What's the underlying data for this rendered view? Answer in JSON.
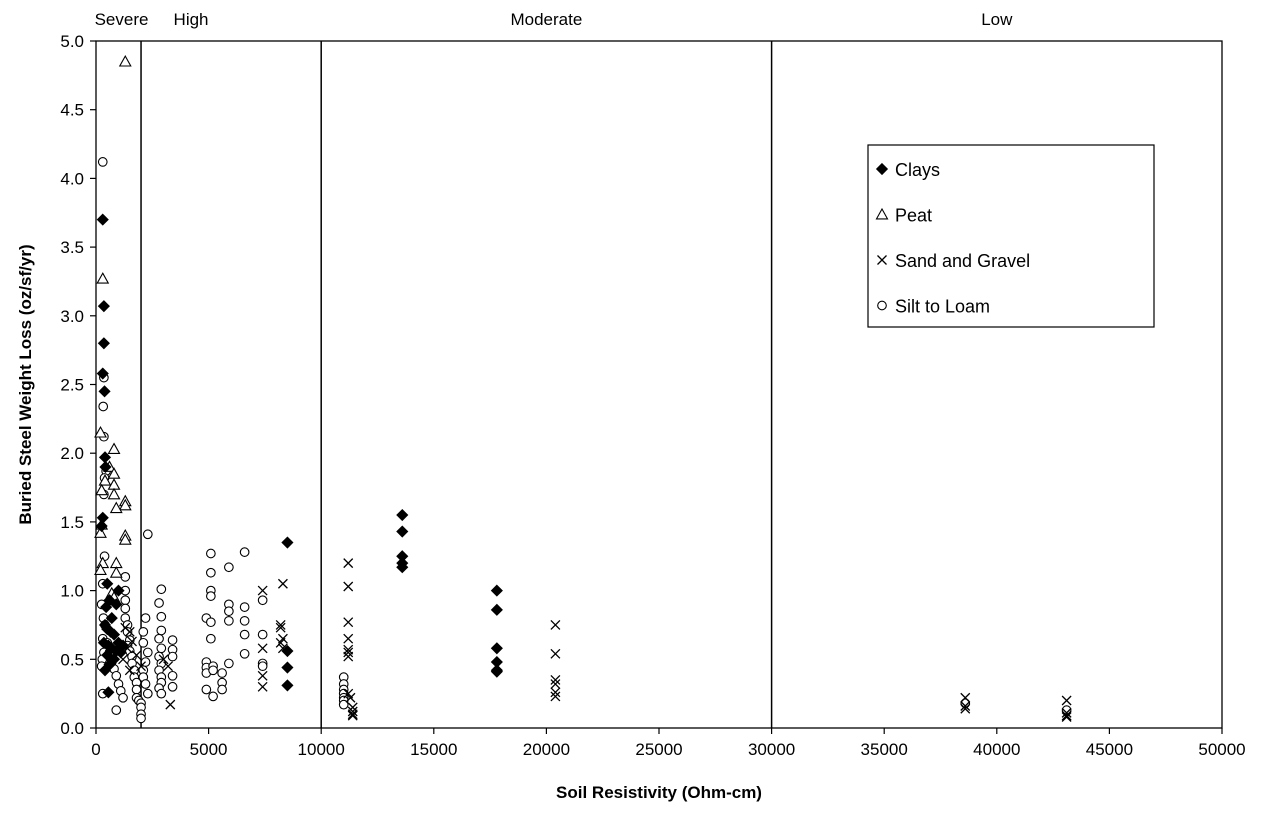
{
  "chart_data": {
    "type": "scatter",
    "title": "",
    "xlabel": "Soil Resistivity (Ohm-cm)",
    "ylabel": "Buried Steel Weight Loss (oz/sf/yr)",
    "xlim": [
      0,
      50000
    ],
    "ylim": [
      0,
      5.0
    ],
    "x_ticks": [
      "0",
      "5000",
      "10000",
      "15000",
      "20000",
      "25000",
      "30000",
      "35000",
      "40000",
      "45000",
      "50000"
    ],
    "y_ticks": [
      "0.0",
      "0.5",
      "1.0",
      "1.5",
      "2.0",
      "2.5",
      "3.0",
      "3.5",
      "4.0",
      "4.5",
      "5.0"
    ],
    "grid": false,
    "legend_position": "top-right",
    "corrosivity_zones": [
      {
        "label": "Severe",
        "from": 0,
        "to": 2000
      },
      {
        "label": "High",
        "from": 2000,
        "to": 10000
      },
      {
        "label": "Moderate",
        "from": 10000,
        "to": 30000
      },
      {
        "label": "Low",
        "from": 30000,
        "to": 50000
      }
    ],
    "series": [
      {
        "name": "Clays",
        "marker": "filled-diamond",
        "points": [
          [
            300,
            3.7
          ],
          [
            350,
            3.07
          ],
          [
            350,
            2.8
          ],
          [
            300,
            2.58
          ],
          [
            380,
            2.45
          ],
          [
            400,
            1.97
          ],
          [
            420,
            1.9
          ],
          [
            300,
            1.53
          ],
          [
            250,
            1.47
          ],
          [
            500,
            1.05
          ],
          [
            600,
            0.93
          ],
          [
            450,
            0.88
          ],
          [
            700,
            0.8
          ],
          [
            900,
            0.9
          ],
          [
            1000,
            1.0
          ],
          [
            400,
            0.75
          ],
          [
            500,
            0.72
          ],
          [
            650,
            0.7
          ],
          [
            800,
            0.68
          ],
          [
            350,
            0.62
          ],
          [
            550,
            0.6
          ],
          [
            700,
            0.58
          ],
          [
            900,
            0.56
          ],
          [
            1100,
            0.55
          ],
          [
            500,
            0.53
          ],
          [
            800,
            0.5
          ],
          [
            600,
            0.46
          ],
          [
            400,
            0.42
          ],
          [
            550,
            0.26
          ],
          [
            1200,
            0.6
          ],
          [
            1000,
            0.62
          ],
          [
            8500,
            1.35
          ],
          [
            8500,
            0.56
          ],
          [
            8500,
            0.44
          ],
          [
            8500,
            0.31
          ],
          [
            13600,
            1.55
          ],
          [
            13600,
            1.43
          ],
          [
            13600,
            1.25
          ],
          [
            13600,
            1.2
          ],
          [
            13600,
            1.17
          ],
          [
            17800,
            1.0
          ],
          [
            17800,
            0.86
          ],
          [
            17800,
            0.58
          ],
          [
            17800,
            0.48
          ],
          [
            17800,
            0.42
          ],
          [
            17800,
            0.41
          ]
        ]
      },
      {
        "name": "Peat",
        "marker": "open-triangle",
        "points": [
          [
            1300,
            4.85
          ],
          [
            300,
            3.27
          ],
          [
            200,
            2.15
          ],
          [
            800,
            2.03
          ],
          [
            600,
            1.9
          ],
          [
            800,
            1.85
          ],
          [
            400,
            1.8
          ],
          [
            800,
            1.77
          ],
          [
            250,
            1.73
          ],
          [
            800,
            1.7
          ],
          [
            1300,
            1.65
          ],
          [
            1300,
            1.62
          ],
          [
            900,
            1.6
          ],
          [
            250,
            1.48
          ],
          [
            200,
            1.42
          ],
          [
            1300,
            1.4
          ],
          [
            1300,
            1.37
          ],
          [
            300,
            1.2
          ],
          [
            900,
            1.2
          ],
          [
            200,
            1.15
          ],
          [
            900,
            1.13
          ],
          [
            700,
            0.98
          ],
          [
            800,
            0.95
          ]
        ]
      },
      {
        "name": "Sand and Gravel",
        "marker": "x-cross",
        "points": [
          [
            1300,
            0.73
          ],
          [
            1500,
            0.7
          ],
          [
            1600,
            0.63
          ],
          [
            1400,
            0.58
          ],
          [
            1800,
            0.53
          ],
          [
            1200,
            0.5
          ],
          [
            2000,
            0.45
          ],
          [
            1500,
            0.42
          ],
          [
            3000,
            0.5
          ],
          [
            3200,
            0.45
          ],
          [
            3300,
            0.17
          ],
          [
            7400,
            1.0
          ],
          [
            7400,
            0.58
          ],
          [
            7400,
            0.38
          ],
          [
            7400,
            0.3
          ],
          [
            8300,
            1.05
          ],
          [
            8200,
            0.75
          ],
          [
            8200,
            0.73
          ],
          [
            8300,
            0.65
          ],
          [
            8200,
            0.62
          ],
          [
            8300,
            0.58
          ],
          [
            11200,
            1.2
          ],
          [
            11200,
            1.03
          ],
          [
            11200,
            0.77
          ],
          [
            11200,
            0.65
          ],
          [
            11200,
            0.57
          ],
          [
            11200,
            0.55
          ],
          [
            11200,
            0.52
          ],
          [
            11200,
            0.25
          ],
          [
            11300,
            0.22
          ],
          [
            11400,
            0.15
          ],
          [
            11400,
            0.12
          ],
          [
            11400,
            0.1
          ],
          [
            11400,
            0.09
          ],
          [
            20400,
            0.75
          ],
          [
            20400,
            0.54
          ],
          [
            20400,
            0.35
          ],
          [
            20400,
            0.32
          ],
          [
            20400,
            0.26
          ],
          [
            20400,
            0.23
          ],
          [
            38600,
            0.22
          ],
          [
            38600,
            0.16
          ],
          [
            38600,
            0.14
          ],
          [
            43100,
            0.2
          ],
          [
            43100,
            0.11
          ],
          [
            43100,
            0.09
          ],
          [
            43100,
            0.08
          ]
        ]
      },
      {
        "name": "Silt to Loam",
        "marker": "open-circle",
        "points": [
          [
            300,
            4.12
          ],
          [
            350,
            2.55
          ],
          [
            320,
            2.34
          ],
          [
            350,
            2.12
          ],
          [
            450,
            1.87
          ],
          [
            380,
            1.82
          ],
          [
            350,
            1.7
          ],
          [
            380,
            1.25
          ],
          [
            300,
            1.05
          ],
          [
            250,
            0.9
          ],
          [
            330,
            0.8
          ],
          [
            400,
            0.75
          ],
          [
            300,
            0.65
          ],
          [
            350,
            0.55
          ],
          [
            280,
            0.5
          ],
          [
            250,
            0.45
          ],
          [
            300,
            0.25
          ],
          [
            500,
            0.62
          ],
          [
            600,
            0.55
          ],
          [
            700,
            0.48
          ],
          [
            800,
            0.43
          ],
          [
            900,
            0.38
          ],
          [
            1000,
            0.32
          ],
          [
            1100,
            0.27
          ],
          [
            1200,
            0.22
          ],
          [
            1300,
            1.1
          ],
          [
            1300,
            1.0
          ],
          [
            1300,
            0.93
          ],
          [
            1300,
            0.87
          ],
          [
            1300,
            0.8
          ],
          [
            1400,
            0.75
          ],
          [
            1400,
            0.7
          ],
          [
            1500,
            0.64
          ],
          [
            1400,
            0.6
          ],
          [
            1500,
            0.56
          ],
          [
            1600,
            0.52
          ],
          [
            1600,
            0.47
          ],
          [
            1700,
            0.42
          ],
          [
            1700,
            0.37
          ],
          [
            1800,
            0.33
          ],
          [
            1800,
            0.28
          ],
          [
            1800,
            0.22
          ],
          [
            1900,
            0.2
          ],
          [
            2000,
            0.18
          ],
          [
            2000,
            0.15
          ],
          [
            2000,
            0.1
          ],
          [
            2000,
            0.07
          ],
          [
            900,
            0.13
          ],
          [
            2200,
            0.8
          ],
          [
            2100,
            0.7
          ],
          [
            2100,
            0.62
          ],
          [
            2300,
            0.55
          ],
          [
            2200,
            0.48
          ],
          [
            2100,
            0.42
          ],
          [
            2100,
            0.37
          ],
          [
            2200,
            0.32
          ],
          [
            2300,
            0.25
          ],
          [
            2300,
            1.41
          ],
          [
            2900,
            1.01
          ],
          [
            2800,
            0.91
          ],
          [
            2900,
            0.81
          ],
          [
            2900,
            0.71
          ],
          [
            2800,
            0.65
          ],
          [
            2900,
            0.58
          ],
          [
            2800,
            0.52
          ],
          [
            2900,
            0.47
          ],
          [
            2800,
            0.42
          ],
          [
            2900,
            0.37
          ],
          [
            2900,
            0.33
          ],
          [
            2800,
            0.29
          ],
          [
            2900,
            0.25
          ],
          [
            3400,
            0.64
          ],
          [
            3400,
            0.57
          ],
          [
            3400,
            0.52
          ],
          [
            3400,
            0.38
          ],
          [
            3400,
            0.3
          ],
          [
            4900,
            0.8
          ],
          [
            4900,
            0.48
          ],
          [
            4900,
            0.44
          ],
          [
            4900,
            0.4
          ],
          [
            4900,
            0.28
          ],
          [
            5100,
            1.27
          ],
          [
            5100,
            1.13
          ],
          [
            5100,
            1.0
          ],
          [
            5100,
            0.96
          ],
          [
            5100,
            0.77
          ],
          [
            5100,
            0.65
          ],
          [
            5200,
            0.45
          ],
          [
            5200,
            0.42
          ],
          [
            5200,
            0.23
          ],
          [
            5600,
            0.4
          ],
          [
            5600,
            0.33
          ],
          [
            5600,
            0.28
          ],
          [
            5900,
            1.17
          ],
          [
            5900,
            0.9
          ],
          [
            5900,
            0.85
          ],
          [
            5900,
            0.78
          ],
          [
            5900,
            0.47
          ],
          [
            6600,
            1.28
          ],
          [
            6600,
            0.88
          ],
          [
            6600,
            0.78
          ],
          [
            6600,
            0.68
          ],
          [
            6600,
            0.54
          ],
          [
            7400,
            0.93
          ],
          [
            7400,
            0.68
          ],
          [
            7400,
            0.47
          ],
          [
            7400,
            0.45
          ],
          [
            11000,
            0.37
          ],
          [
            11000,
            0.32
          ],
          [
            11000,
            0.28
          ],
          [
            11000,
            0.25
          ],
          [
            11000,
            0.22
          ],
          [
            11000,
            0.2
          ],
          [
            11000,
            0.17
          ],
          [
            38600,
            0.18
          ],
          [
            43100,
            0.13
          ]
        ]
      }
    ]
  }
}
